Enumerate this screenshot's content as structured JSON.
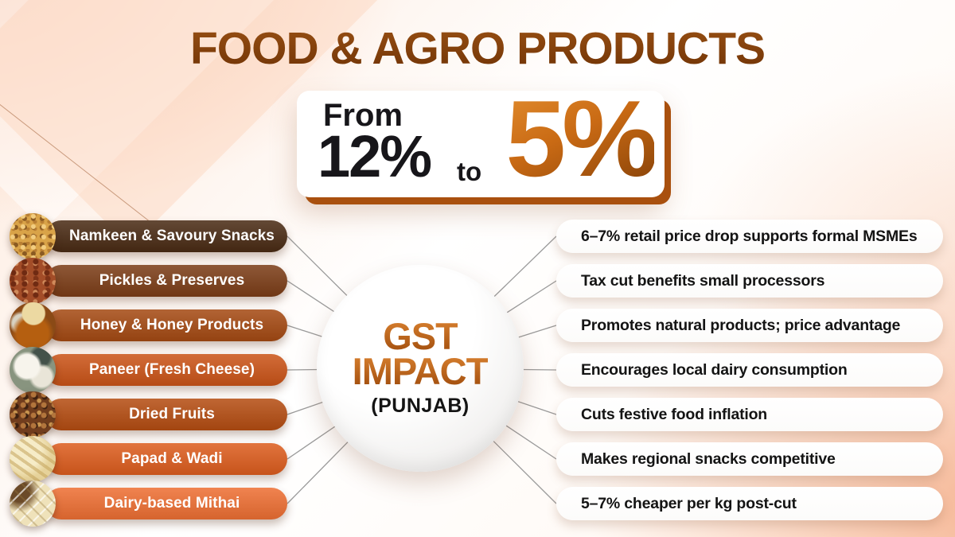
{
  "page": {
    "title": "FOOD & AGRO PRODUCTS"
  },
  "rate_card": {
    "from_label": "From",
    "from_value": "12%",
    "to_label": "to",
    "to_value": "5%"
  },
  "center": {
    "line1": "GST",
    "line2": "IMPACT",
    "line3": "(PUNJAB)"
  },
  "colors": {
    "title_brown": "#7c3e0c",
    "accent_orange": "#c2611a",
    "line_gray": "#9a9a9a",
    "card_shadow_orange": "#a9500e"
  },
  "left_items": [
    {
      "label": "Namkeen & Savoury Snacks",
      "pill_color": "#4a2b14",
      "icon": "namkeen-snacks-photo"
    },
    {
      "label": "Pickles & Preserves",
      "pill_color": "#7c3d17",
      "icon": "pickles-photo"
    },
    {
      "label": "Honey & Honey Products",
      "pill_color": "#a54a13",
      "icon": "honey-jar-photo"
    },
    {
      "label": "Paneer (Fresh Cheese)",
      "pill_color": "#cb5418",
      "icon": "paneer-photo"
    },
    {
      "label": "Dried Fruits",
      "pill_color": "#b54d12",
      "icon": "dried-fruits-photo"
    },
    {
      "label": "Papad & Wadi",
      "pill_color": "#dd5d1e",
      "icon": "papad-photo"
    },
    {
      "label": "Dairy-based Mithai",
      "pill_color": "#ee6f33",
      "icon": "mithai-photo"
    }
  ],
  "right_items": [
    {
      "label": "6–7% retail price drop supports formal MSMEs"
    },
    {
      "label": "Tax cut benefits small processors"
    },
    {
      "label": "Promotes natural products; price advantage"
    },
    {
      "label": "Encourages local dairy consumption"
    },
    {
      "label": "Cuts festive food inflation"
    },
    {
      "label": "Makes regional snacks competitive"
    },
    {
      "label": "5–7% cheaper per kg post-cut"
    }
  ]
}
